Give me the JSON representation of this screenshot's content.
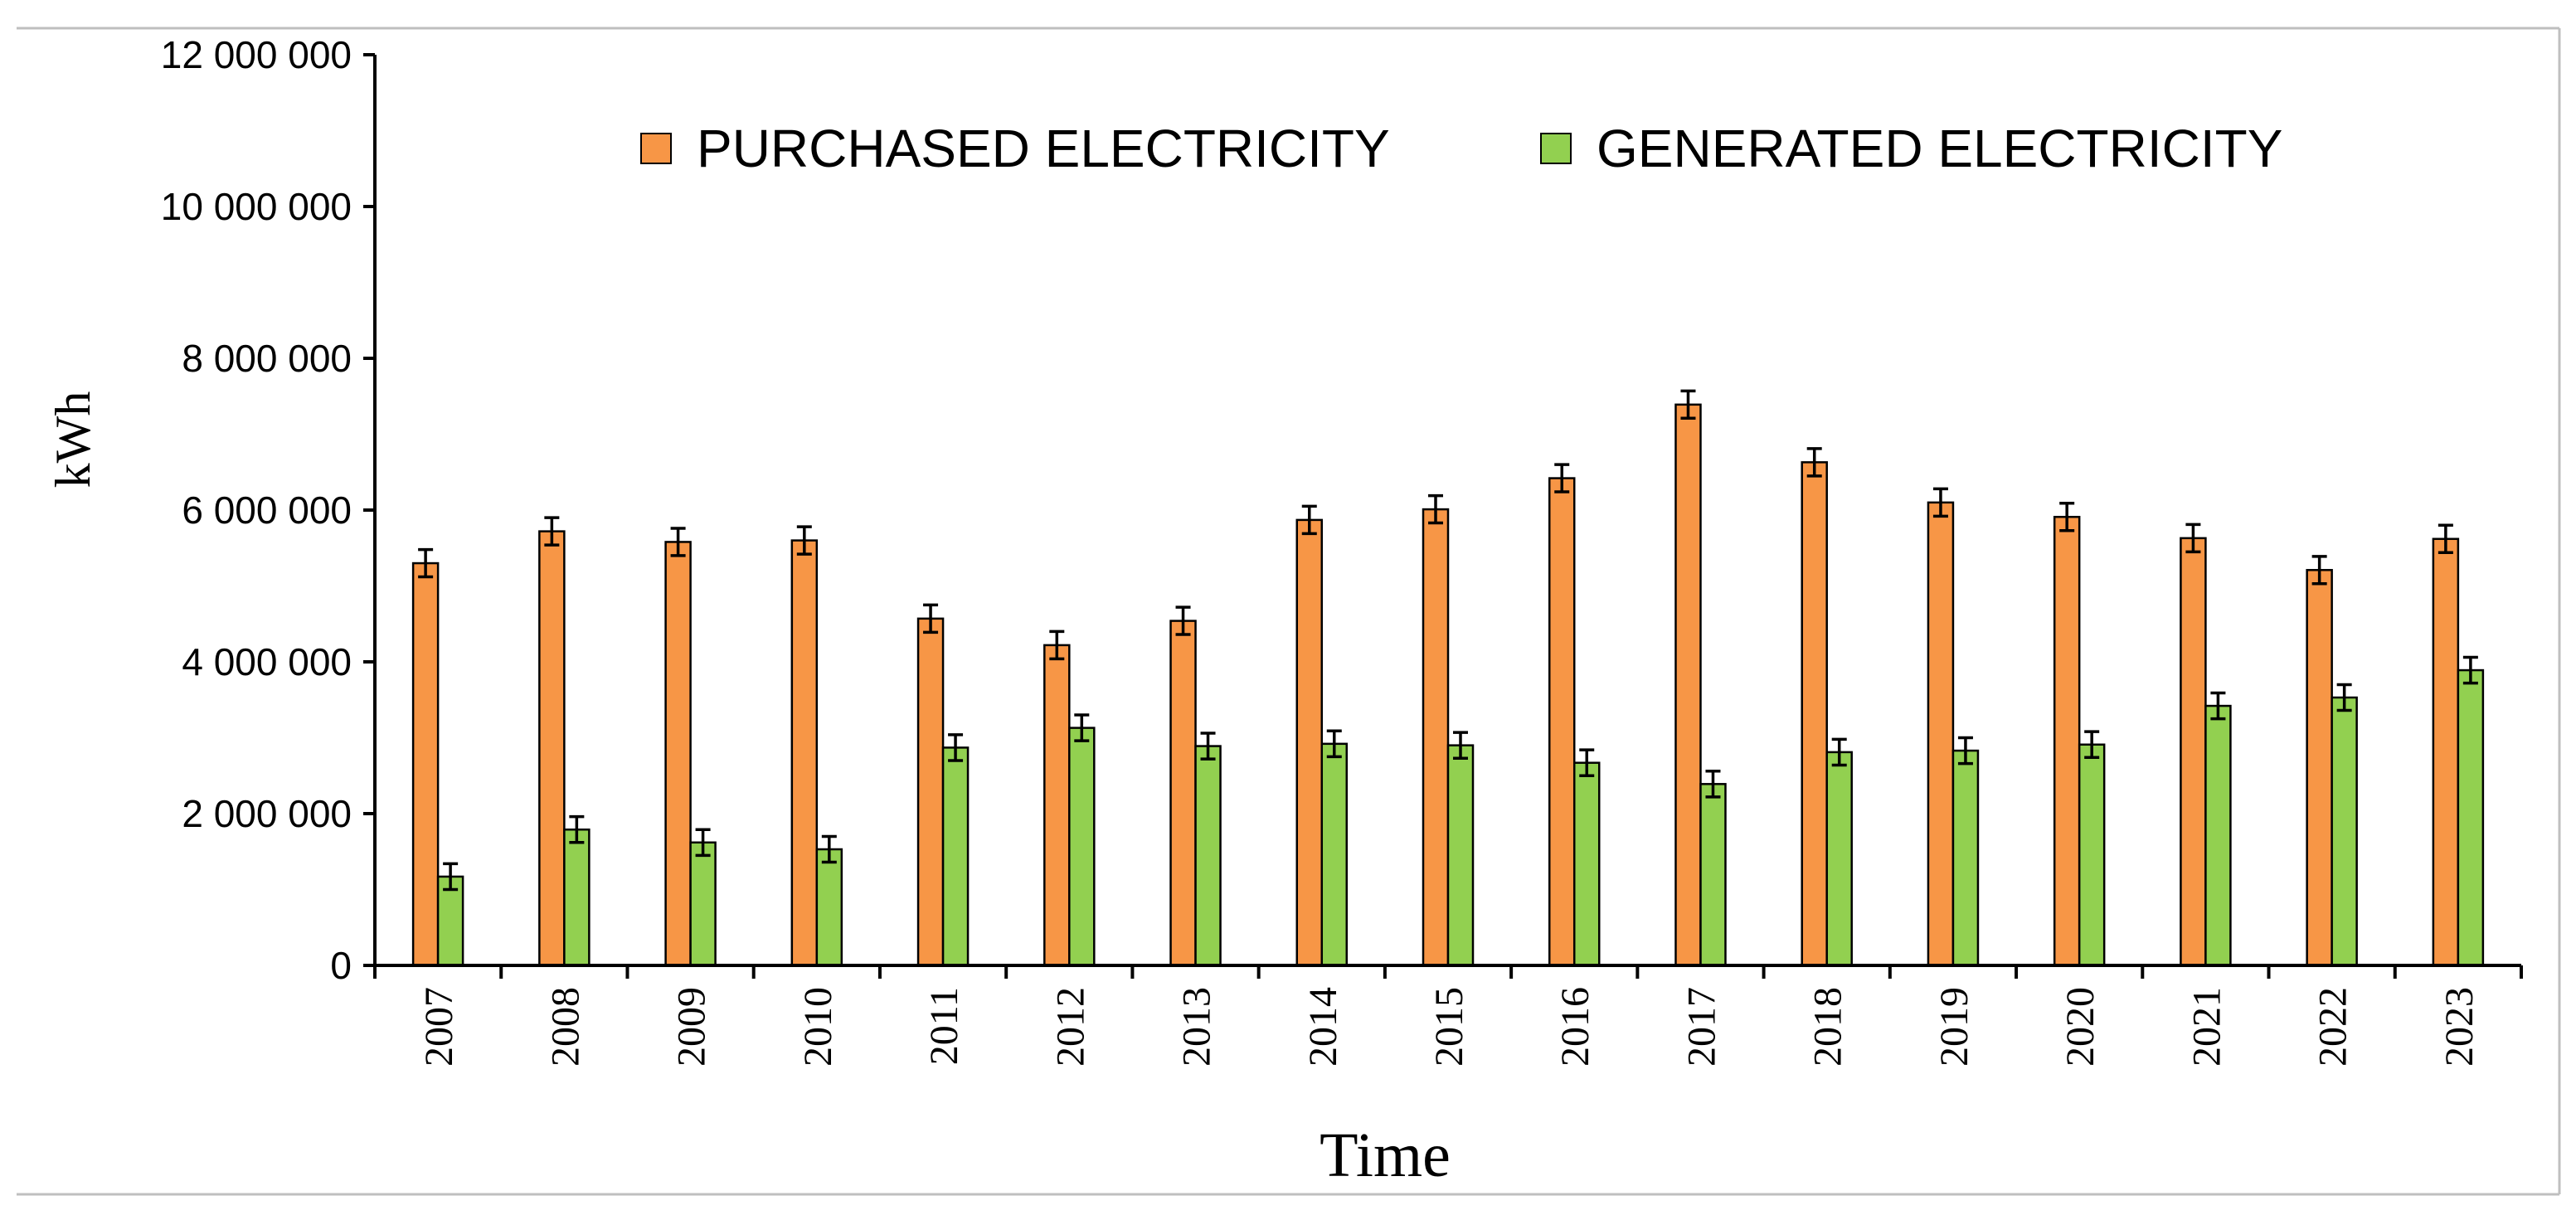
{
  "chart_data": {
    "type": "bar",
    "title": "",
    "xlabel": "Time",
    "ylabel": "kWh",
    "ylim": [
      0,
      12000000
    ],
    "yticks": [
      0,
      2000000,
      4000000,
      6000000,
      8000000,
      10000000,
      12000000
    ],
    "ytick_labels": [
      "0",
      "2 000 000",
      "4 000 000",
      "6 000 000",
      "8 000 000",
      "10 000 000",
      "12 000 000"
    ],
    "categories": [
      "2007",
      "2008",
      "2009",
      "2010",
      "2011",
      "2012",
      "2013",
      "2014",
      "2015",
      "2016",
      "2017",
      "2018",
      "2019",
      "2020",
      "2021",
      "2022",
      "2023"
    ],
    "series": [
      {
        "name": "PURCHASED ELECTRICITY",
        "color": "#F79646",
        "values": [
          5300000,
          5720000,
          5580000,
          5600000,
          4570000,
          4220000,
          4540000,
          5870000,
          6010000,
          6420000,
          7390000,
          6630000,
          6100000,
          5910000,
          5630000,
          5210000,
          5620000
        ],
        "error": [
          180000,
          180000,
          180000,
          180000,
          180000,
          180000,
          180000,
          180000,
          180000,
          180000,
          180000,
          180000,
          180000,
          180000,
          180000,
          180000,
          180000
        ]
      },
      {
        "name": "GENERATED ELECTRICITY",
        "color": "#92D050",
        "values": [
          1170000,
          1790000,
          1620000,
          1530000,
          2870000,
          3130000,
          2890000,
          2920000,
          2900000,
          2670000,
          2390000,
          2810000,
          2830000,
          2910000,
          3420000,
          3530000,
          3890000
        ],
        "error": [
          170000,
          170000,
          170000,
          170000,
          170000,
          170000,
          170000,
          170000,
          170000,
          170000,
          170000,
          170000,
          170000,
          170000,
          170000,
          170000,
          170000
        ]
      }
    ],
    "legend": "top"
  }
}
